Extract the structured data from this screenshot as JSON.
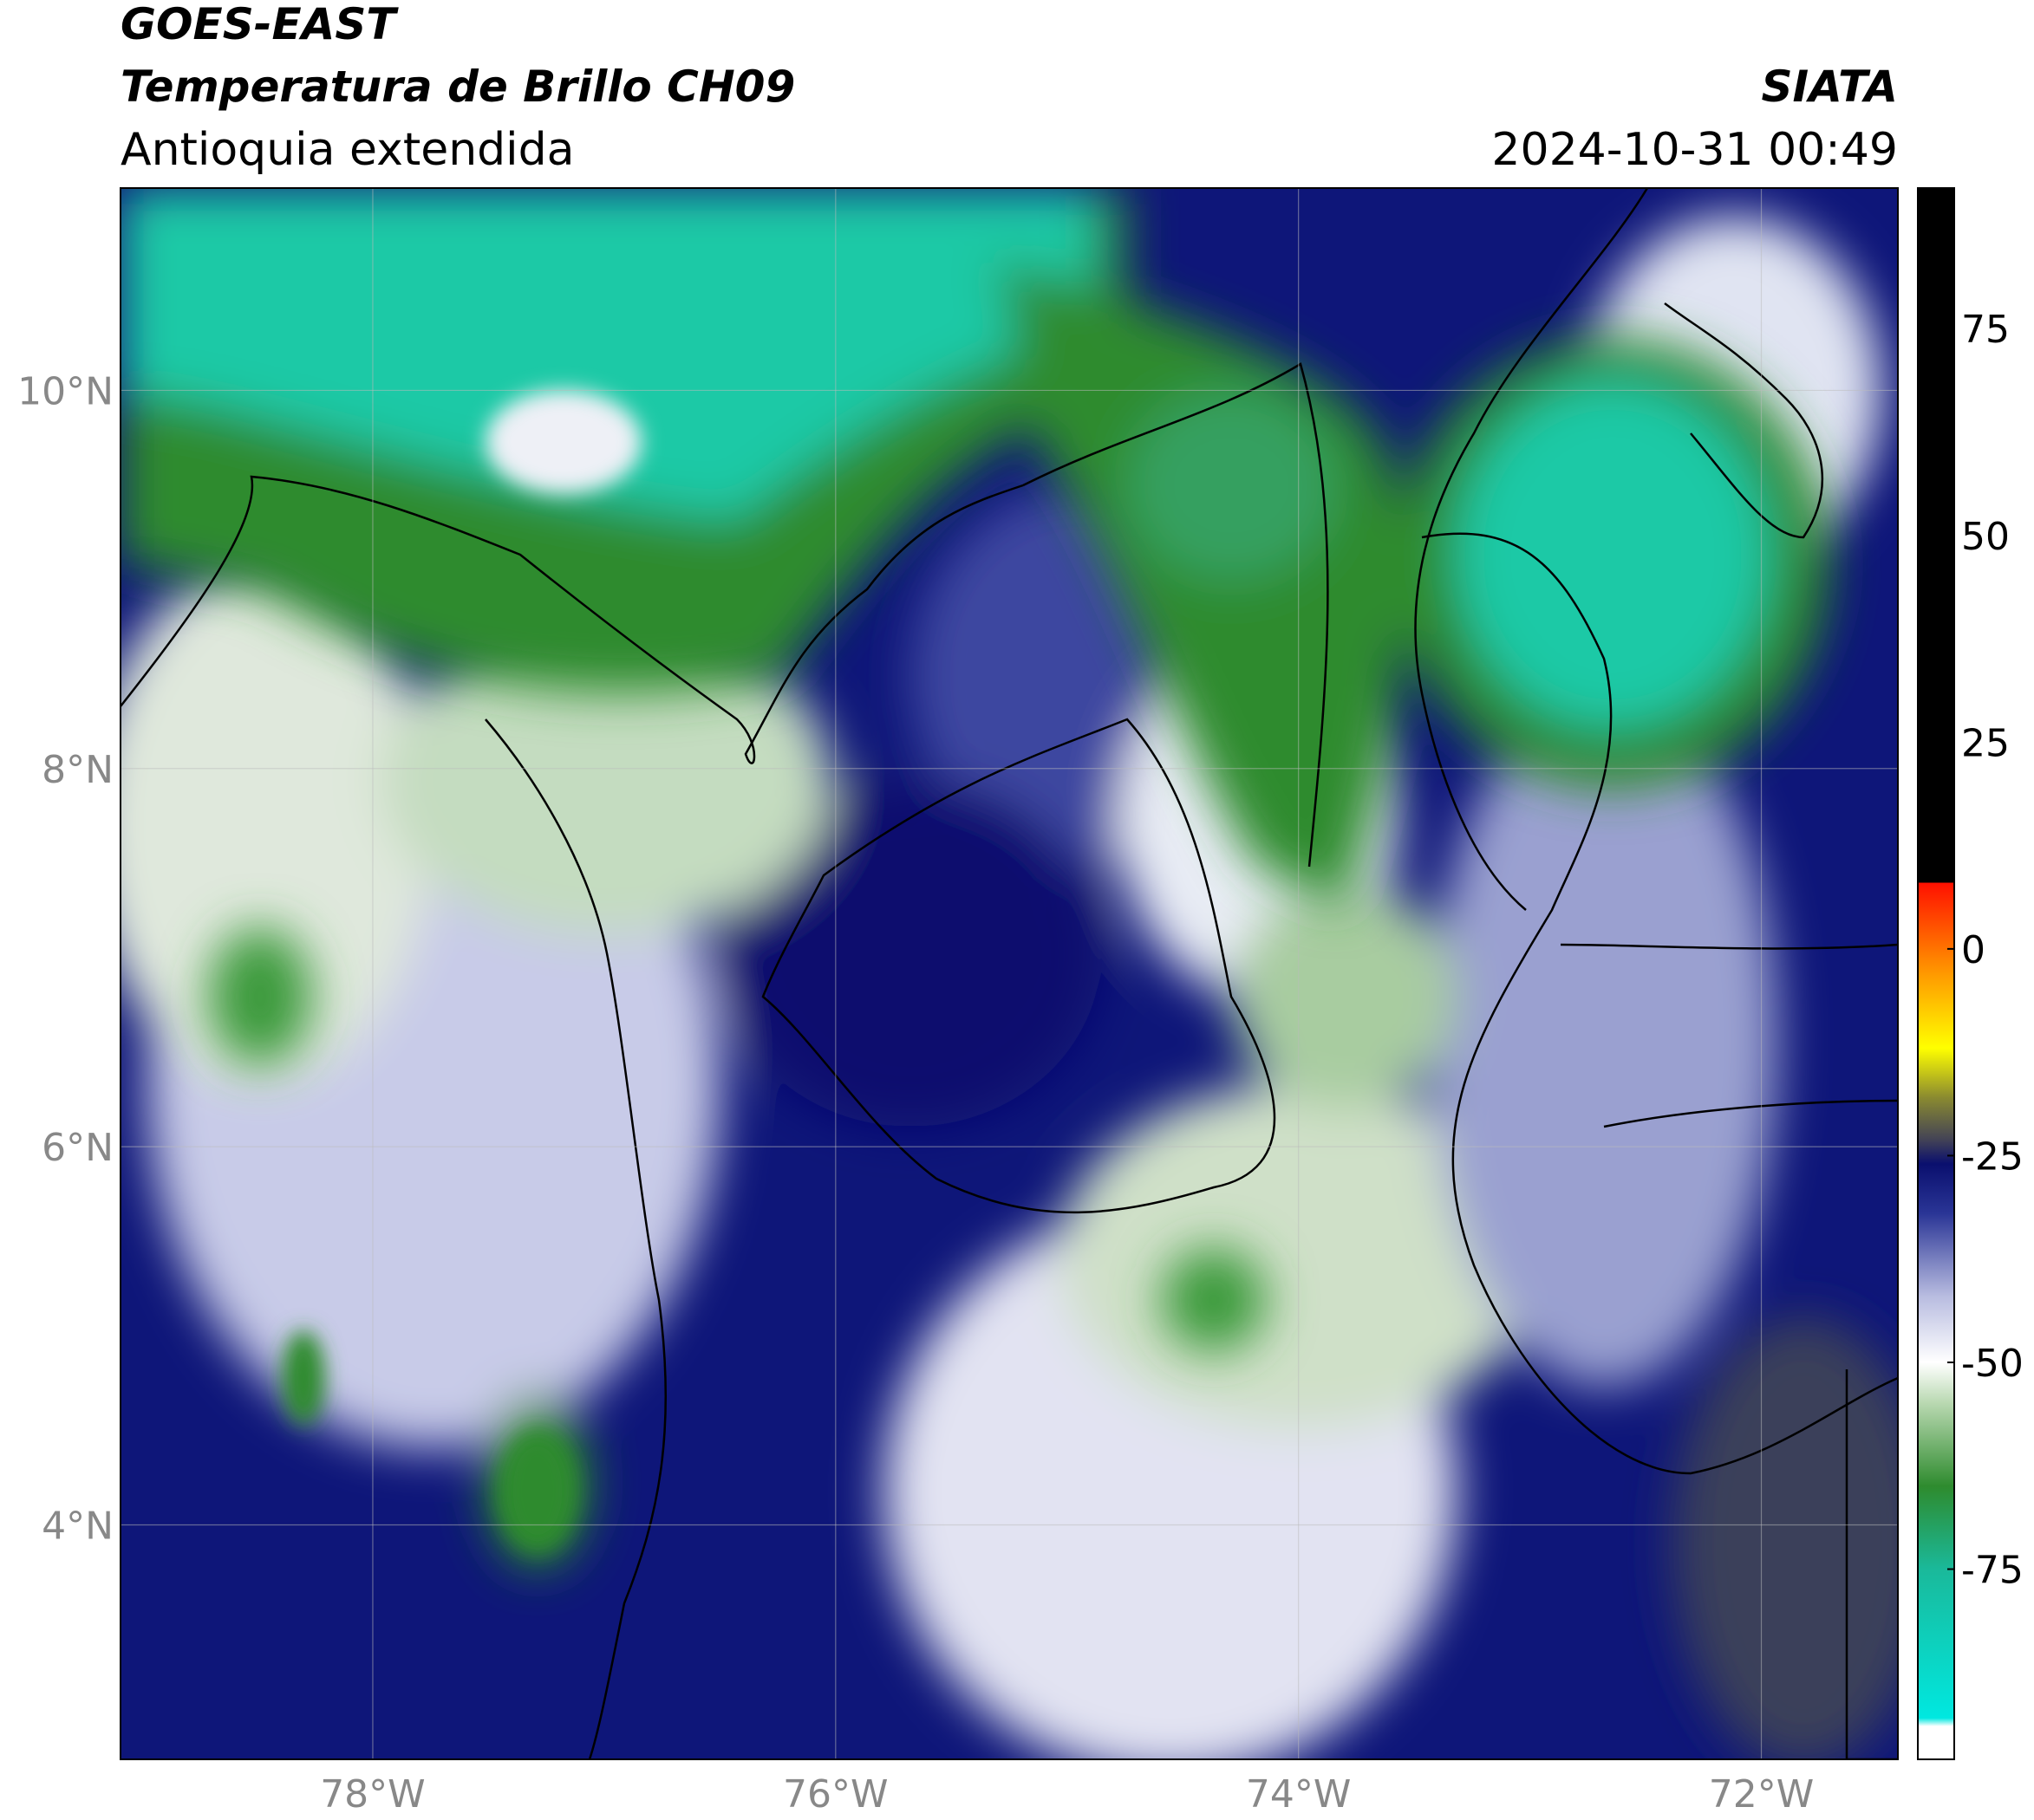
{
  "header": {
    "title": "GOES-EAST",
    "subtitle": "Temperatura de Brillo CH09",
    "region": "Antioquia extendida",
    "source": "SIATA",
    "datetime": "2024-10-31 00:49"
  },
  "map": {
    "xlim": [
      -79.09,
      -71.41
    ],
    "ylim": [
      2.76,
      11.07
    ],
    "xticks": [
      {
        "value": -78,
        "label": "78°W"
      },
      {
        "value": -76,
        "label": "76°W"
      },
      {
        "value": -74,
        "label": "74°W"
      },
      {
        "value": -72,
        "label": "72°W"
      }
    ],
    "yticks": [
      {
        "value": 4,
        "label": "4°N"
      },
      {
        "value": 6,
        "label": "6°N"
      },
      {
        "value": 8,
        "label": "8°N"
      },
      {
        "value": 10,
        "label": "10°N"
      }
    ],
    "grid": true
  },
  "colorbar": {
    "lim": [
      -98,
      92
    ],
    "ticks": [
      -75,
      -50,
      -25,
      0,
      25,
      50,
      75
    ],
    "colors": [
      {
        "value": -98,
        "color": "#ffffff"
      },
      {
        "value": -94,
        "color": "#ffffff"
      },
      {
        "value": -93,
        "color": "#00e8e0"
      },
      {
        "value": -75,
        "color": "#1ab99a"
      },
      {
        "value": -65,
        "color": "#2e8b2e"
      },
      {
        "value": -55,
        "color": "#b8d8b0"
      },
      {
        "value": -50,
        "color": "#ffffff"
      },
      {
        "value": -42,
        "color": "#b8bce0"
      },
      {
        "value": -32,
        "color": "#2a3596"
      },
      {
        "value": -26,
        "color": "#0a0f6e"
      },
      {
        "value": -23,
        "color": "#444455"
      },
      {
        "value": -18,
        "color": "#8a8a30"
      },
      {
        "value": -12,
        "color": "#ffff00"
      },
      {
        "value": -3,
        "color": "#ff9900"
      },
      {
        "value": 8,
        "color": "#ff1000"
      },
      {
        "value": 8.01,
        "color": "#000000"
      },
      {
        "value": 92,
        "color": "#000000"
      }
    ]
  }
}
